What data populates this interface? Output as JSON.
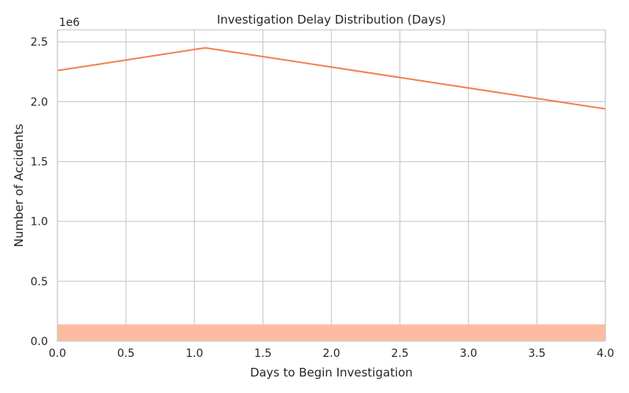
{
  "chart_data": {
    "type": "line",
    "title": "Investigation Delay Distribution (Days)",
    "xlabel": "Days to Begin Investigation",
    "ylabel": "Number of Accidents",
    "offset_label": "1e6",
    "xlim": [
      0,
      4
    ],
    "ylim": [
      0,
      2.6
    ],
    "x_ticks": [
      "0.0",
      "0.5",
      "1.0",
      "1.5",
      "2.0",
      "2.5",
      "3.0",
      "3.5",
      "4.0"
    ],
    "y_ticks": [
      "0.0",
      "0.5",
      "1.0",
      "1.5",
      "2.0",
      "2.5"
    ],
    "grid": true,
    "line": {
      "color": "#f47f4f",
      "x": [
        0,
        1.08,
        4.0
      ],
      "y": [
        2.26,
        2.45,
        1.94
      ]
    },
    "band": {
      "color": "#fdbba1",
      "x": [
        0,
        4
      ],
      "y_low": 0,
      "y_high": 0.14
    }
  }
}
